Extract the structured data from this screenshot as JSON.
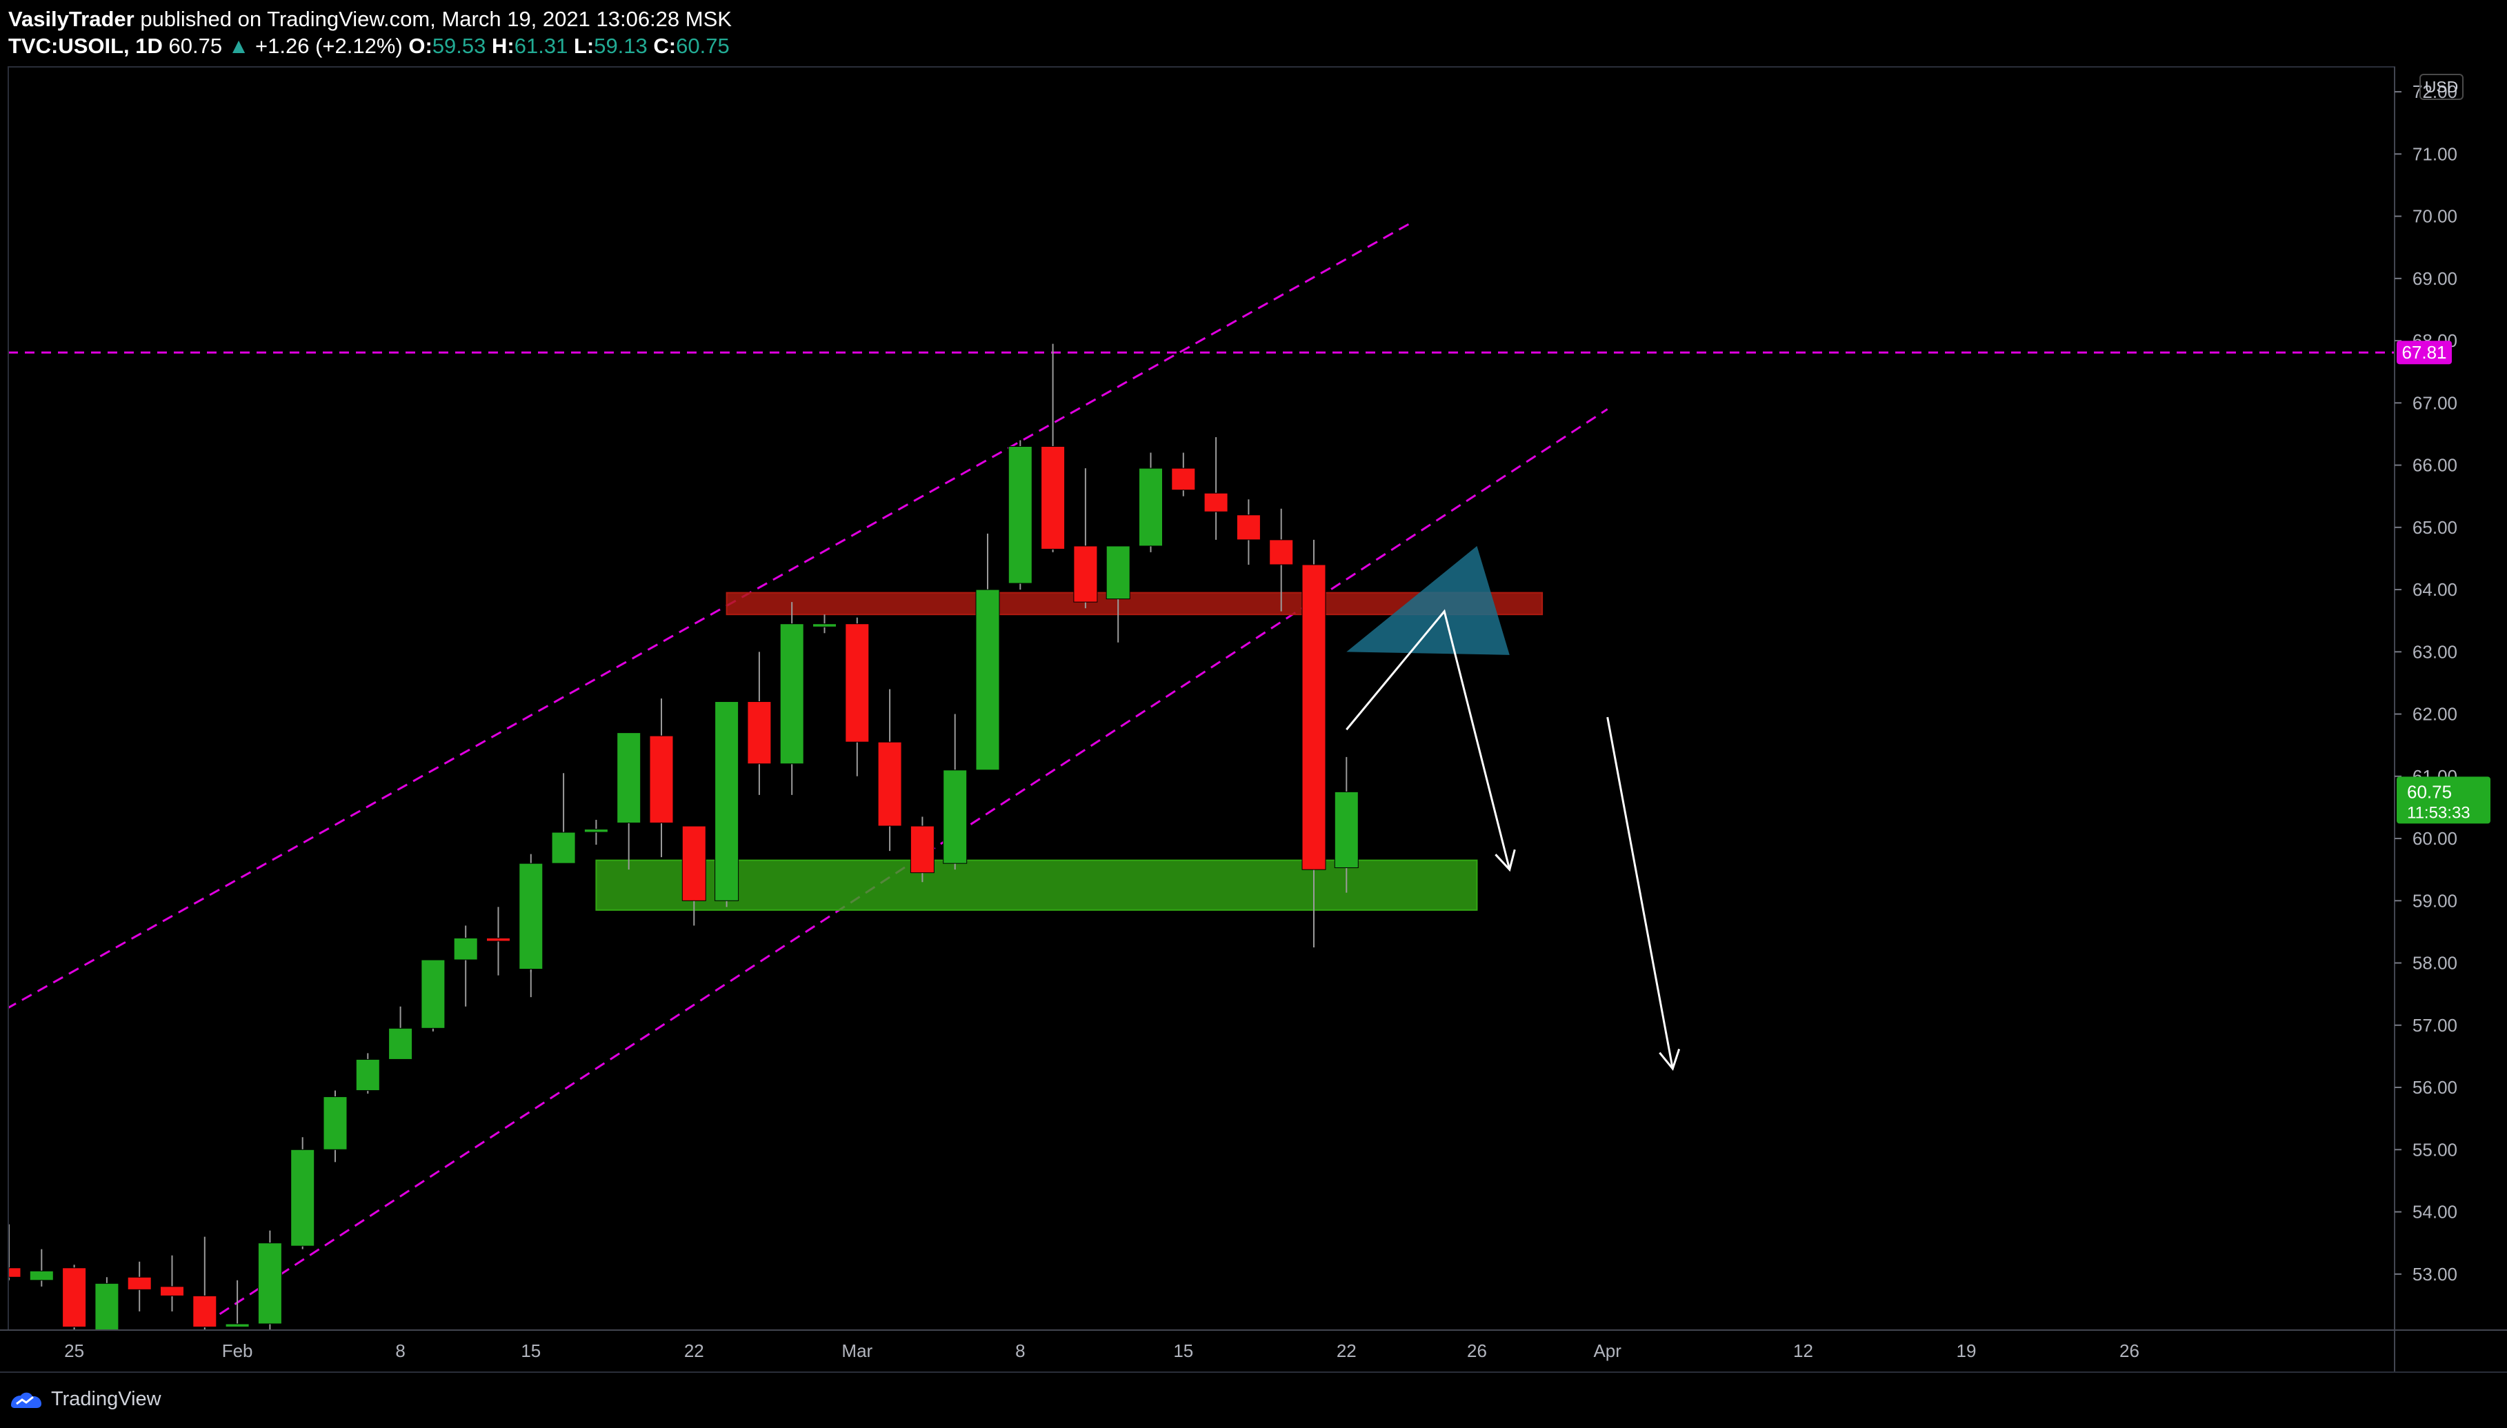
{
  "header": {
    "author": "VasilyTrader",
    "published_text": "published on TradingView.com, March 19, 2021 13:06:28 MSK",
    "symbol": "TVC:USOIL, 1D",
    "last_price": "60.75",
    "change_arrow": "▲",
    "change": "+1.26 (+2.12%)",
    "open_label": "O:",
    "open": "59.53",
    "high_label": "H:",
    "high": "61.31",
    "low_label": "L:",
    "low": "59.13",
    "close_label": "C:",
    "close": "60.75"
  },
  "price_axis": {
    "currency": "USD",
    "ticks": [
      "53.00",
      "54.00",
      "55.00",
      "56.00",
      "57.00",
      "58.00",
      "59.00",
      "60.00",
      "61.00",
      "62.00",
      "63.00",
      "64.00",
      "65.00",
      "66.00",
      "67.00",
      "68.00",
      "69.00",
      "70.00",
      "71.00",
      "72.00"
    ],
    "level_label": "67.81",
    "level_label_color": "#e000e0",
    "current_price_label": "60.75",
    "countdown": "11:53:33",
    "current_price_color": "#22ab22"
  },
  "footer": {
    "brand": "TradingView",
    "icon": "tradingview-logo-icon"
  },
  "colors": {
    "up": "#22ab22",
    "down": "#f81515",
    "guide": "#e000e0",
    "resistance": "#b01a10",
    "support": "#32a813",
    "projection": "#1b6f89"
  },
  "chart_data": {
    "type": "candlestick",
    "symbol": "TVC:USOIL",
    "timeframe": "1D",
    "ylim": [
      52.1,
      72.4
    ],
    "x_tick_labels": [
      {
        "label": "25",
        "date": "2021-01-25"
      },
      {
        "label": "Feb",
        "date": "2021-02-01"
      },
      {
        "label": "8",
        "date": "2021-02-08"
      },
      {
        "label": "15",
        "date": "2021-02-15"
      },
      {
        "label": "22",
        "date": "2021-02-22"
      },
      {
        "label": "Mar",
        "date": "2021-03-01"
      },
      {
        "label": "8",
        "date": "2021-03-08"
      },
      {
        "label": "15",
        "date": "2021-03-15"
      },
      {
        "label": "22",
        "date": "2021-03-22"
      },
      {
        "label": "26",
        "date": "2021-03-26"
      },
      {
        "label": "Apr",
        "date": "2021-04-01"
      },
      {
        "label": "12",
        "date": "2021-04-12"
      },
      {
        "label": "19",
        "date": "2021-04-19"
      },
      {
        "label": "26",
        "date": "2021-04-26"
      }
    ],
    "candles": [
      {
        "date": "2021-01-21",
        "o": 53.1,
        "h": 53.8,
        "l": 52.9,
        "c": 52.95
      },
      {
        "date": "2021-01-22",
        "o": 52.9,
        "h": 53.4,
        "l": 52.8,
        "c": 53.05
      },
      {
        "date": "2021-01-25",
        "o": 53.1,
        "h": 53.15,
        "l": 52.1,
        "c": 52.15
      },
      {
        "date": "2021-01-26",
        "o": 52.1,
        "h": 52.95,
        "l": 52.1,
        "c": 52.85
      },
      {
        "date": "2021-01-27",
        "o": 52.95,
        "h": 53.2,
        "l": 52.4,
        "c": 52.75
      },
      {
        "date": "2021-01-28",
        "o": 52.8,
        "h": 53.3,
        "l": 52.4,
        "c": 52.65
      },
      {
        "date": "2021-01-29",
        "o": 52.65,
        "h": 53.6,
        "l": 52.1,
        "c": 52.15
      },
      {
        "date": "2021-02-01",
        "o": 52.15,
        "h": 52.9,
        "l": 52.15,
        "c": 52.2
      },
      {
        "date": "2021-02-02",
        "o": 52.2,
        "h": 53.7,
        "l": 52.1,
        "c": 53.5
      },
      {
        "date": "2021-02-03",
        "o": 53.45,
        "h": 55.2,
        "l": 53.4,
        "c": 55.0
      },
      {
        "date": "2021-02-04",
        "o": 55.0,
        "h": 55.95,
        "l": 54.8,
        "c": 55.85
      },
      {
        "date": "2021-02-05",
        "o": 55.95,
        "h": 56.55,
        "l": 55.9,
        "c": 56.45
      },
      {
        "date": "2021-02-08",
        "o": 56.45,
        "h": 57.3,
        "l": 56.45,
        "c": 56.95
      },
      {
        "date": "2021-02-09",
        "o": 56.95,
        "h": 58.05,
        "l": 56.9,
        "c": 58.05
      },
      {
        "date": "2021-02-10",
        "o": 58.05,
        "h": 58.6,
        "l": 57.3,
        "c": 58.4
      },
      {
        "date": "2021-02-11",
        "o": 58.4,
        "h": 58.9,
        "l": 57.8,
        "c": 58.35
      },
      {
        "date": "2021-02-12",
        "o": 58.45,
        "h": 58.7,
        "l": 57.85,
        "c": 57.9
      },
      {
        "date": "2021-02-15",
        "o": 57.9,
        "h": 59.75,
        "l": 57.45,
        "c": 59.6
      },
      {
        "date": "2021-02-16",
        "o": 59.6,
        "h": 61.05,
        "l": 59.6,
        "c": 60.1
      },
      {
        "date": "2021-02-17",
        "o": 60.1,
        "h": 60.3,
        "l": 59.9,
        "c": 60.15
      },
      {
        "date": "2021-02-18",
        "o": 60.25,
        "h": 61.7,
        "l": 59.5,
        "c": 61.7
      },
      {
        "date": "2021-02-19",
        "o": 61.65,
        "h": 62.25,
        "l": 59.7,
        "c": 60.25
      },
      {
        "date": "2021-02-22",
        "o": 60.2,
        "h": 60.2,
        "l": 58.6,
        "c": 59.0
      },
      {
        "date": "2021-02-23",
        "o": 59.0,
        "h": 62.2,
        "l": 58.9,
        "c": 62.2
      },
      {
        "date": "2021-02-24",
        "o": 62.2,
        "h": 63.0,
        "l": 60.7,
        "c": 61.2
      },
      {
        "date": "2021-02-25",
        "o": 61.2,
        "h": 63.8,
        "l": 60.7,
        "c": 63.45
      },
      {
        "date": "2021-02-26",
        "o": 63.4,
        "h": 63.6,
        "l": 63.3,
        "c": 63.45
      },
      {
        "date": "2021-03-01",
        "o": 63.45,
        "h": 63.55,
        "l": 61.0,
        "c": 61.55
      },
      {
        "date": "2021-03-02",
        "o": 61.55,
        "h": 62.4,
        "l": 59.8,
        "c": 60.2
      },
      {
        "date": "2021-03-03",
        "o": 60.2,
        "h": 60.35,
        "l": 59.3,
        "c": 59.45
      },
      {
        "date": "2021-03-04",
        "o": 59.6,
        "h": 62.0,
        "l": 59.5,
        "c": 61.1
      },
      {
        "date": "2021-03-05",
        "o": 61.1,
        "h": 64.9,
        "l": 61.1,
        "c": 64.0
      },
      {
        "date": "2021-03-08",
        "o": 64.1,
        "h": 66.4,
        "l": 64.0,
        "c": 66.3
      },
      {
        "date": "2021-03-09",
        "o": 66.3,
        "h": 67.95,
        "l": 64.6,
        "c": 64.65
      },
      {
        "date": "2021-03-10",
        "o": 64.7,
        "h": 65.95,
        "l": 63.7,
        "c": 63.8
      },
      {
        "date": "2021-03-11",
        "o": 63.85,
        "h": 64.7,
        "l": 63.15,
        "c": 64.7
      },
      {
        "date": "2021-03-12",
        "o": 64.7,
        "h": 66.2,
        "l": 64.6,
        "c": 65.95
      },
      {
        "date": "2021-03-15",
        "o": 65.95,
        "h": 66.2,
        "l": 65.5,
        "c": 65.6
      },
      {
        "date": "2021-03-16",
        "o": 65.55,
        "h": 66.45,
        "l": 64.8,
        "c": 65.25
      },
      {
        "date": "2021-03-17",
        "o": 65.2,
        "h": 65.45,
        "l": 64.4,
        "c": 64.8
      },
      {
        "date": "2021-03-18",
        "o": 64.8,
        "h": 65.3,
        "l": 63.65,
        "c": 64.4
      },
      {
        "date": "2021-03-19",
        "o": 64.4,
        "h": 64.8,
        "l": 58.25,
        "c": 59.5
      },
      {
        "date": "2021-03-22",
        "o": 59.53,
        "h": 61.31,
        "l": 59.13,
        "c": 60.75
      }
    ],
    "horizontal_level": {
      "price": 67.81,
      "style": "dashed"
    },
    "channel_lines": [
      {
        "from": {
          "date": "2021-01-19",
          "price": 56.7
        },
        "to": {
          "date": "2021-03-24",
          "price": 69.9
        }
      },
      {
        "from": {
          "date": "2021-01-31",
          "price": 52.2
        },
        "to": {
          "date": "2021-04-04",
          "price": 66.9
        }
      }
    ],
    "zones": [
      {
        "type": "resistance",
        "date_from": "2021-02-23",
        "date_to": "2021-03-30",
        "price_from": 63.6,
        "price_to": 63.95
      },
      {
        "type": "support",
        "date_from": "2021-02-17",
        "date_to": "2021-03-26",
        "price_from": 58.85,
        "price_to": 59.65
      }
    ],
    "projection_triangle": [
      {
        "date": "2021-03-22",
        "price": 63.0
      },
      {
        "date": "2021-03-28",
        "price": 64.7
      },
      {
        "date": "2021-03-29",
        "price": 62.95
      }
    ],
    "arrows": [
      {
        "points": [
          {
            "date": "2021-03-22",
            "price": 61.75
          },
          {
            "date": "2021-03-25",
            "price": 63.65
          },
          {
            "date": "2021-03-29",
            "price": 59.5
          }
        ]
      },
      {
        "points": [
          {
            "date": "2021-04-01",
            "price": 61.95
          },
          {
            "date": "2021-04-06",
            "price": 56.3
          }
        ]
      }
    ]
  }
}
